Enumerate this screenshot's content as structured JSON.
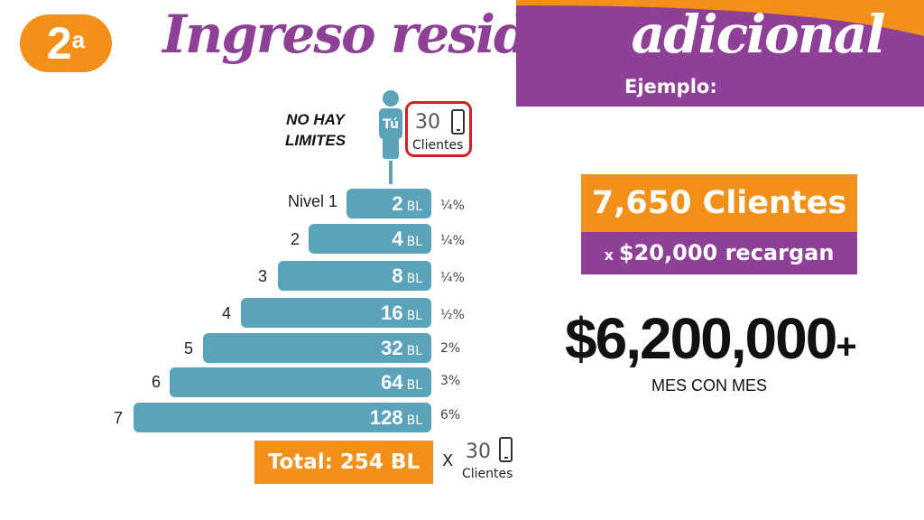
{
  "badge": {
    "number": "2",
    "suffix": "a"
  },
  "title": {
    "part1": "Ingreso residual ",
    "part2": "adicional"
  },
  "banner": {
    "label": "Ejemplo:"
  },
  "no_limits": {
    "line1": "NO HAY",
    "line2": "LIMITES"
  },
  "person": {
    "label": "Tú",
    "icon": "person-icon"
  },
  "start_clients": {
    "count": "30",
    "label": "Clientes",
    "icon": "phone-icon"
  },
  "levels": [
    {
      "label": "Nivel 1",
      "value": "2",
      "unit": "BL",
      "percent": "¼%"
    },
    {
      "label": "2",
      "value": "4",
      "unit": "BL",
      "percent": "¼%"
    },
    {
      "label": "3",
      "value": "8",
      "unit": "BL",
      "percent": "¼%"
    },
    {
      "label": "4",
      "value": "16",
      "unit": "BL",
      "percent": "½%"
    },
    {
      "label": "5",
      "value": "32",
      "unit": "BL",
      "percent": "2%"
    },
    {
      "label": "6",
      "value": "64",
      "unit": "BL",
      "percent": "3%"
    },
    {
      "label": "7",
      "value": "128",
      "unit": "BL",
      "percent": "6%"
    }
  ],
  "total": {
    "label": "Total: 254 BL",
    "multiplier": "X",
    "count": "30",
    "clients_label": "Clientes"
  },
  "example": {
    "clients": "7,650 Clientes",
    "x": "x",
    "recharge": "$20,000 recargan",
    "amount": "$6,200,000",
    "plus": "+",
    "period": "MES CON MES"
  },
  "colors": {
    "orange": "#f39019",
    "purple": "#8e3f96",
    "bar_blue": "#5aa3bb",
    "red": "#d32022"
  }
}
